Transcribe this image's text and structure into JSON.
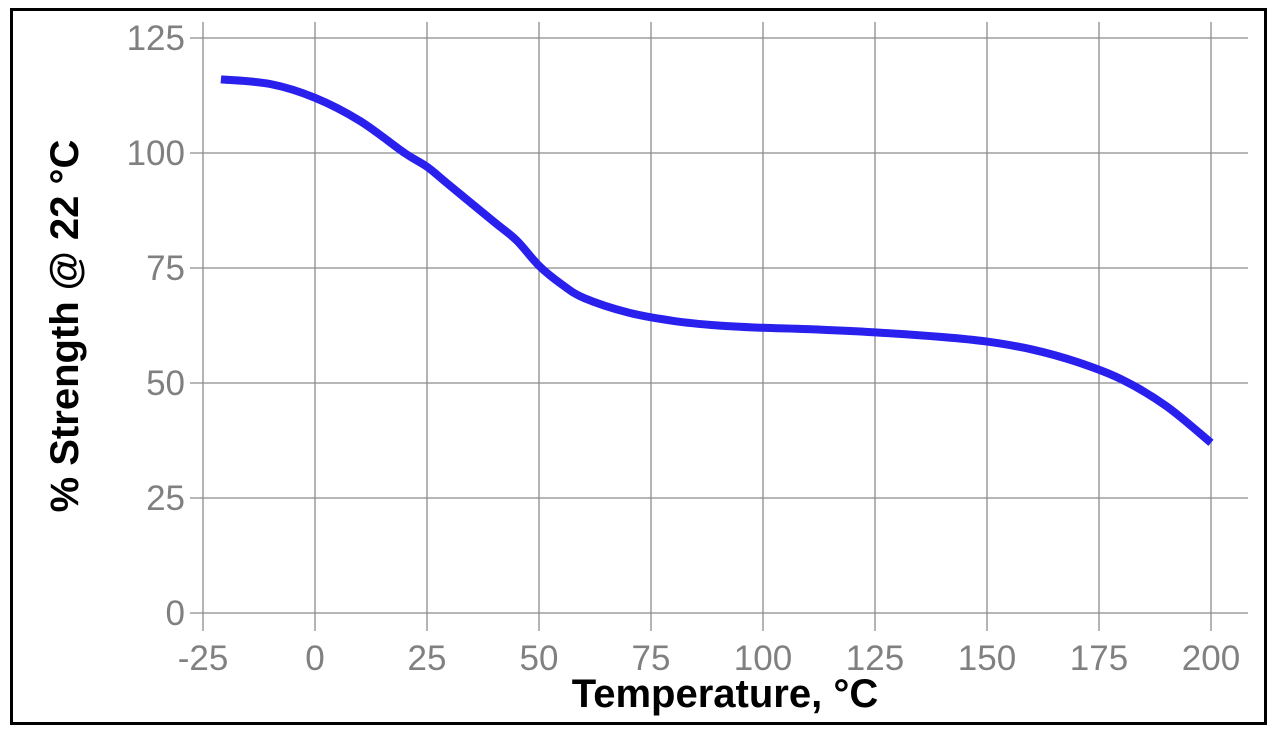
{
  "chart_data": {
    "type": "line",
    "title": "",
    "xlabel": "Temperature, °C",
    "ylabel": "% Strength @ 22 °C",
    "xlim": [
      -25,
      200
    ],
    "ylim": [
      0,
      125
    ],
    "xticks": [
      -25,
      0,
      25,
      50,
      75,
      100,
      125,
      150,
      175,
      200
    ],
    "yticks": [
      0,
      25,
      50,
      75,
      100,
      125
    ],
    "grid": true,
    "series": [
      {
        "color": "#2a20ee",
        "x": [
          -21,
          -10,
          0,
          10,
          20,
          25,
          30,
          40,
          45,
          50,
          55,
          60,
          70,
          80,
          90,
          100,
          110,
          125,
          140,
          150,
          160,
          170,
          180,
          190,
          200
        ],
        "y": [
          116,
          115,
          112,
          107,
          100,
          97,
          93,
          85,
          81,
          75.5,
          71.5,
          68.5,
          65.3,
          63.5,
          62.5,
          62,
          61.7,
          61,
          60,
          59,
          57.3,
          54.6,
          50.8,
          45,
          37
        ]
      }
    ]
  }
}
